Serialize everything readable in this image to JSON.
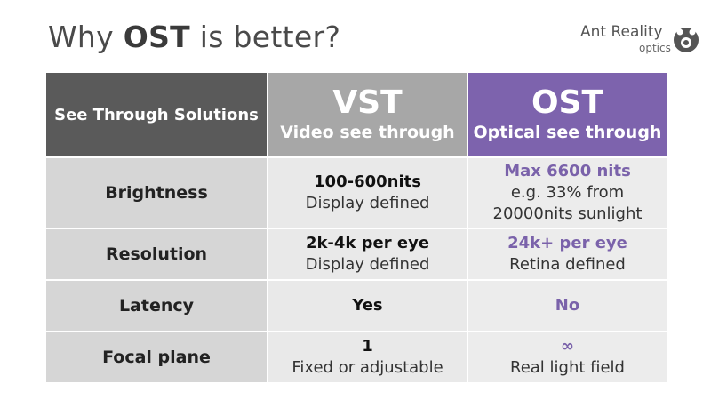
{
  "title": {
    "prefix": "Why ",
    "highlight": "OST",
    "suffix": " is better?"
  },
  "logo": {
    "name": "Ant Reality",
    "sub": "optics",
    "icon": "ant-reality-logo-icon"
  },
  "header": {
    "col0": "See Through Solutions",
    "vst_abbr": "VST",
    "vst_full": "Video see through",
    "ost_abbr": "OST",
    "ost_full": "Optical see through"
  },
  "rows": [
    {
      "label": "Brightness",
      "vst_main": "100-600nits",
      "vst_sub": "Display defined",
      "ost_main": "Max 6600 nits",
      "ost_sub1": "e.g. 33% from",
      "ost_sub2": "20000nits sunlight"
    },
    {
      "label": "Resolution",
      "vst_main": "2k-4k per eye",
      "vst_sub": "Display defined",
      "ost_main": "24k+ per eye",
      "ost_sub": "Retina defined"
    },
    {
      "label": "Latency",
      "vst_main": "Yes",
      "ost_main": "No"
    },
    {
      "label": "Focal plane",
      "vst_main": "1",
      "vst_sub": "Fixed or adjustable",
      "ost_main": "∞",
      "ost_sub": "Real light field"
    }
  ],
  "colors": {
    "header_dark": "#5a5a5a",
    "vst_gray": "#a7a7a7",
    "ost_purple": "#7d63ad",
    "ost_text": "#7a62aa"
  }
}
